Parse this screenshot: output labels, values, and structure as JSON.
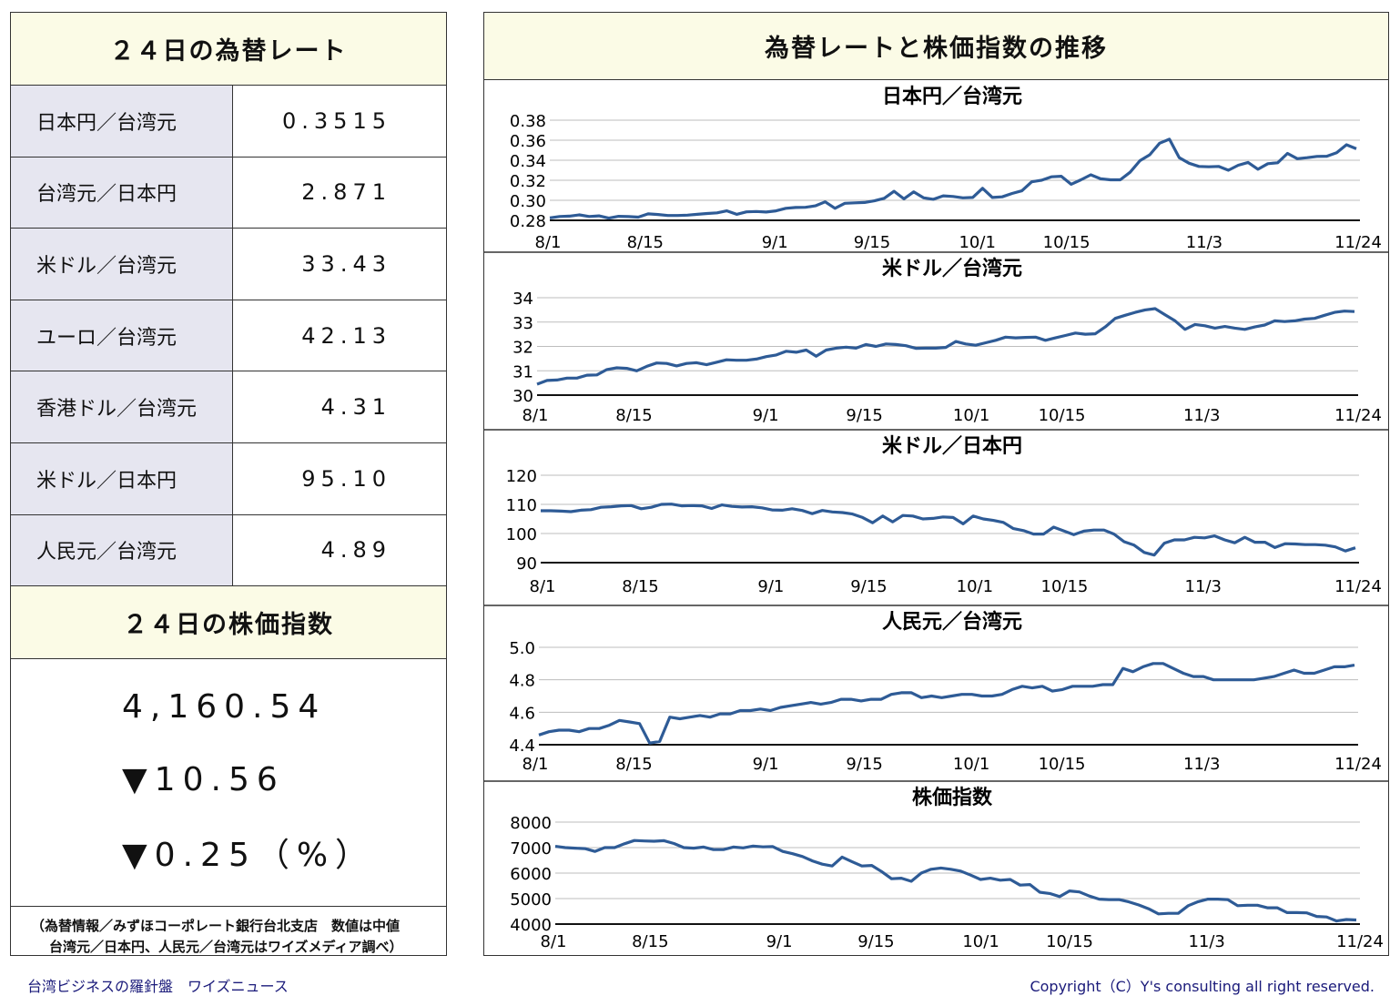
{
  "left": {
    "rates_title": "２４日の為替レート",
    "rates": [
      {
        "label": "日本円／台湾元",
        "value": "0.3515"
      },
      {
        "label": "台湾元／日本円",
        "value": "2.871"
      },
      {
        "label": "米ドル／台湾元",
        "value": "33.43"
      },
      {
        "label": "ユーロ／台湾元",
        "value": "42.13"
      },
      {
        "label": "香港ドル／台湾元",
        "value": "4.31"
      },
      {
        "label": "米ドル／日本円",
        "value": "95.10"
      },
      {
        "label": "人民元／台湾元",
        "value": "4.89"
      }
    ],
    "stock_title": "２４日の株価指数",
    "stock_index": "4,160.54",
    "stock_change": "▼10.56",
    "stock_change_pct": "▼0.25（%）",
    "note_line1": "（為替情報／みずほコーポレート銀行台北支店　数値は中値",
    "note_line2": "台湾元／日本円、人民元／台湾元はワイズメディア調べ）"
  },
  "right": {
    "title": "為替レートと株価指数の推移"
  },
  "footer": {
    "left": "台湾ビジネスの羅針盤　ワイズニュース",
    "right": "Copyright（C）Y's consulting all right reserved."
  },
  "colors": {
    "line": "#2e5b96",
    "grid": "#bdbdbd",
    "header_bg": "#fbfbe6",
    "label_bg": "#e6e6f0"
  },
  "chart_data": [
    {
      "type": "line",
      "title": "日本円／台湾元",
      "x_ticks": [
        "8/1",
        "8/15",
        "9/1",
        "9/15",
        "10/1",
        "10/15",
        "11/3",
        "11/24"
      ],
      "y_ticks": [
        "0.38",
        "0.36",
        "0.34",
        "0.32",
        "0.30",
        "0.28"
      ],
      "ylim": [
        0.28,
        0.38
      ],
      "values": [
        0.2825,
        0.2838,
        0.2842,
        0.2855,
        0.2838,
        0.2845,
        0.2822,
        0.284,
        0.2837,
        0.2832,
        0.2865,
        0.2858,
        0.2848,
        0.2848,
        0.2852,
        0.286,
        0.2868,
        0.2875,
        0.2895,
        0.286,
        0.2885,
        0.2888,
        0.2883,
        0.2895,
        0.292,
        0.2928,
        0.293,
        0.2945,
        0.2985,
        0.292,
        0.297,
        0.2975,
        0.2978,
        0.2995,
        0.302,
        0.309,
        0.3015,
        0.3085,
        0.3025,
        0.301,
        0.3045,
        0.3038,
        0.3025,
        0.3028,
        0.312,
        0.3028,
        0.3035,
        0.3068,
        0.3095,
        0.3185,
        0.32,
        0.3235,
        0.324,
        0.316,
        0.3205,
        0.3255,
        0.3215,
        0.3205,
        0.3205,
        0.328,
        0.3395,
        0.3455,
        0.357,
        0.361,
        0.3425,
        0.337,
        0.3338,
        0.3335,
        0.3338,
        0.33,
        0.335,
        0.3378,
        0.331,
        0.3365,
        0.3375,
        0.3468,
        0.3415,
        0.3425,
        0.3438,
        0.344,
        0.3475,
        0.3555,
        0.3515
      ]
    },
    {
      "type": "line",
      "title": "米ドル／台湾元",
      "x_ticks": [
        "8/1",
        "8/15",
        "9/1",
        "9/15",
        "10/1",
        "10/15",
        "11/3",
        "11/24"
      ],
      "y_ticks": [
        "34",
        "33",
        "32",
        "31",
        "30"
      ],
      "ylim": [
        30,
        34
      ],
      "values": [
        30.45,
        30.6,
        30.62,
        30.7,
        30.7,
        30.82,
        30.83,
        31.05,
        31.12,
        31.1,
        31.0,
        31.18,
        31.32,
        31.3,
        31.2,
        31.3,
        31.33,
        31.25,
        31.35,
        31.45,
        31.43,
        31.43,
        31.48,
        31.58,
        31.65,
        31.8,
        31.76,
        31.85,
        31.6,
        31.85,
        31.93,
        31.97,
        31.93,
        32.08,
        32.0,
        32.1,
        32.08,
        32.03,
        31.92,
        31.93,
        31.93,
        31.96,
        32.2,
        32.1,
        32.05,
        32.15,
        32.25,
        32.38,
        32.35,
        32.37,
        32.38,
        32.25,
        32.35,
        32.45,
        32.55,
        32.5,
        32.52,
        32.8,
        33.15,
        33.28,
        33.4,
        33.5,
        33.55,
        33.3,
        33.05,
        32.7,
        32.9,
        32.85,
        32.75,
        32.82,
        32.75,
        32.7,
        32.8,
        32.88,
        33.05,
        33.02,
        33.05,
        33.12,
        33.15,
        33.28,
        33.4,
        33.45,
        33.43
      ]
    },
    {
      "type": "line",
      "title": "米ドル／日本円",
      "x_ticks": [
        "8/1",
        "8/15",
        "9/1",
        "9/15",
        "10/1",
        "10/15",
        "11/3",
        "11/24"
      ],
      "y_ticks": [
        "120",
        "110",
        "100",
        "90"
      ],
      "ylim": [
        90,
        120
      ],
      "values": [
        107.8,
        107.8,
        107.7,
        107.5,
        108.0,
        108.2,
        109.0,
        109.2,
        109.5,
        109.6,
        108.5,
        109.0,
        110.0,
        110.1,
        109.5,
        109.6,
        109.5,
        108.6,
        109.8,
        109.3,
        109.1,
        109.2,
        108.8,
        108.1,
        108.0,
        108.5,
        107.9,
        106.8,
        107.9,
        107.4,
        107.2,
        106.7,
        105.5,
        103.7,
        106.0,
        104.0,
        106.2,
        106.0,
        105.0,
        105.2,
        105.7,
        105.5,
        103.3,
        106.0,
        105.0,
        104.5,
        103.8,
        101.7,
        101.0,
        99.8,
        99.8,
        102.2,
        100.9,
        99.6,
        100.8,
        101.2,
        101.2,
        99.8,
        97.2,
        96.0,
        93.5,
        92.6,
        96.7,
        97.8,
        97.8,
        98.7,
        98.5,
        99.2,
        97.8,
        96.8,
        98.7,
        97.0,
        97.0,
        95.2,
        96.5,
        96.4,
        96.2,
        96.2,
        96.0,
        95.4,
        94.0,
        95.1
      ]
    },
    {
      "type": "line",
      "title": "人民元／台湾元",
      "x_ticks": [
        "8/1",
        "8/15",
        "9/1",
        "9/15",
        "10/1",
        "10/15",
        "11/3",
        "11/24"
      ],
      "y_ticks": [
        "5.0",
        "4.8",
        "4.6",
        "4.4"
      ],
      "ylim": [
        4.4,
        5.0
      ],
      "values": [
        4.46,
        4.48,
        4.49,
        4.49,
        4.48,
        4.5,
        4.5,
        4.52,
        4.55,
        4.54,
        4.53,
        4.41,
        4.42,
        4.57,
        4.56,
        4.57,
        4.58,
        4.57,
        4.59,
        4.59,
        4.61,
        4.61,
        4.62,
        4.61,
        4.63,
        4.64,
        4.65,
        4.66,
        4.65,
        4.66,
        4.68,
        4.68,
        4.67,
        4.68,
        4.68,
        4.71,
        4.72,
        4.72,
        4.69,
        4.7,
        4.69,
        4.7,
        4.71,
        4.71,
        4.7,
        4.7,
        4.71,
        4.74,
        4.76,
        4.75,
        4.76,
        4.73,
        4.74,
        4.76,
        4.76,
        4.76,
        4.77,
        4.77,
        4.87,
        4.85,
        4.88,
        4.9,
        4.9,
        4.87,
        4.84,
        4.82,
        4.82,
        4.8,
        4.8,
        4.8,
        4.8,
        4.8,
        4.81,
        4.82,
        4.84,
        4.86,
        4.84,
        4.84,
        4.86,
        4.88,
        4.88,
        4.89
      ]
    },
    {
      "type": "line",
      "title": "株価指数",
      "x_ticks": [
        "8/1",
        "8/15",
        "9/1",
        "9/15",
        "10/1",
        "10/15",
        "11/3",
        "11/24"
      ],
      "y_ticks": [
        "8000",
        "7000",
        "6000",
        "5000",
        "4000"
      ],
      "ylim": [
        4000,
        8000
      ],
      "values": [
        7050,
        7000,
        6980,
        6960,
        6850,
        7000,
        7000,
        7150,
        7280,
        7260,
        7250,
        7270,
        7160,
        7000,
        6980,
        7020,
        6920,
        6920,
        7020,
        6990,
        7060,
        7030,
        7040,
        6850,
        6760,
        6650,
        6480,
        6350,
        6280,
        6630,
        6450,
        6280,
        6300,
        6060,
        5780,
        5800,
        5680,
        6000,
        6150,
        6200,
        6150,
        6080,
        5920,
        5750,
        5800,
        5720,
        5750,
        5530,
        5550,
        5250,
        5200,
        5080,
        5300,
        5260,
        5100,
        4980,
        4960,
        4960,
        4870,
        4750,
        4600,
        4400,
        4420,
        4420,
        4720,
        4880,
        4980,
        4980,
        4960,
        4720,
        4740,
        4740,
        4640,
        4640,
        4450,
        4450,
        4440,
        4300,
        4280,
        4120,
        4180,
        4160
      ]
    }
  ]
}
